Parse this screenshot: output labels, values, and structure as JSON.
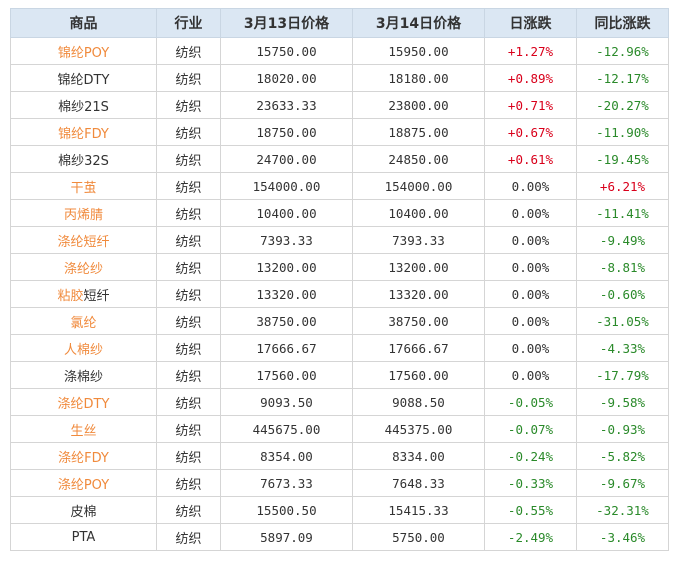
{
  "colors": {
    "orange": "#f08a3c",
    "text": "#333333",
    "up": "#d9001b",
    "down": "#2a8a2a",
    "header_bg": "#dbe7f3",
    "border": "#d5d5d5"
  },
  "headers": [
    "商品",
    "行业",
    "3月13日价格",
    "3月14日价格",
    "日涨跌",
    "同比涨跌"
  ],
  "rows": [
    {
      "name": [
        "锦纶POY"
      ],
      "link": true,
      "industry": "纺织",
      "p13": "15750.00",
      "p14": "15950.00",
      "day": "+1.27%",
      "dayDir": "up",
      "yoy": "-12.96%",
      "yoyDir": "down"
    },
    {
      "name": [
        "锦纶DTY"
      ],
      "link": false,
      "industry": "纺织",
      "p13": "18020.00",
      "p14": "18180.00",
      "day": "+0.89%",
      "dayDir": "up",
      "yoy": "-12.17%",
      "yoyDir": "down"
    },
    {
      "name": [
        "棉纱21S"
      ],
      "link": false,
      "industry": "纺织",
      "p13": "23633.33",
      "p14": "23800.00",
      "day": "+0.71%",
      "dayDir": "up",
      "yoy": "-20.27%",
      "yoyDir": "down"
    },
    {
      "name": [
        "锦纶FDY"
      ],
      "link": true,
      "industry": "纺织",
      "p13": "18750.00",
      "p14": "18875.00",
      "day": "+0.67%",
      "dayDir": "up",
      "yoy": "-11.90%",
      "yoyDir": "down"
    },
    {
      "name": [
        "棉纱32S"
      ],
      "link": false,
      "industry": "纺织",
      "p13": "24700.00",
      "p14": "24850.00",
      "day": "+0.61%",
      "dayDir": "up",
      "yoy": "-19.45%",
      "yoyDir": "down"
    },
    {
      "name": [
        "干茧"
      ],
      "link": true,
      "industry": "纺织",
      "p13": "154000.00",
      "p14": "154000.00",
      "day": "0.00%",
      "dayDir": "flat",
      "yoy": "+6.21%",
      "yoyDir": "up"
    },
    {
      "name": [
        "丙烯腈"
      ],
      "link": true,
      "industry": "纺织",
      "p13": "10400.00",
      "p14": "10400.00",
      "day": "0.00%",
      "dayDir": "flat",
      "yoy": "-11.41%",
      "yoyDir": "down"
    },
    {
      "name": [
        "涤纶短纤"
      ],
      "link": true,
      "industry": "纺织",
      "p13": "7393.33",
      "p14": "7393.33",
      "day": "0.00%",
      "dayDir": "flat",
      "yoy": "-9.49%",
      "yoyDir": "down"
    },
    {
      "name": [
        "涤纶纱"
      ],
      "link": true,
      "industry": "纺织",
      "p13": "13200.00",
      "p14": "13200.00",
      "day": "0.00%",
      "dayDir": "flat",
      "yoy": "-8.81%",
      "yoyDir": "down"
    },
    {
      "name": [
        "粘胶",
        "短纤"
      ],
      "link": true,
      "industry": "纺织",
      "p13": "13320.00",
      "p14": "13320.00",
      "day": "0.00%",
      "dayDir": "flat",
      "yoy": "-0.60%",
      "yoyDir": "down"
    },
    {
      "name": [
        "氯纶"
      ],
      "link": true,
      "industry": "纺织",
      "p13": "38750.00",
      "p14": "38750.00",
      "day": "0.00%",
      "dayDir": "flat",
      "yoy": "-31.05%",
      "yoyDir": "down"
    },
    {
      "name": [
        "人棉纱"
      ],
      "link": true,
      "industry": "纺织",
      "p13": "17666.67",
      "p14": "17666.67",
      "day": "0.00%",
      "dayDir": "flat",
      "yoy": "-4.33%",
      "yoyDir": "down"
    },
    {
      "name": [
        "涤棉纱"
      ],
      "link": false,
      "industry": "纺织",
      "p13": "17560.00",
      "p14": "17560.00",
      "day": "0.00%",
      "dayDir": "flat",
      "yoy": "-17.79%",
      "yoyDir": "down"
    },
    {
      "name": [
        "涤纶DTY"
      ],
      "link": true,
      "industry": "纺织",
      "p13": "9093.50",
      "p14": "9088.50",
      "day": "-0.05%",
      "dayDir": "down",
      "yoy": "-9.58%",
      "yoyDir": "down"
    },
    {
      "name": [
        "生丝"
      ],
      "link": true,
      "industry": "纺织",
      "p13": "445675.00",
      "p14": "445375.00",
      "day": "-0.07%",
      "dayDir": "down",
      "yoy": "-0.93%",
      "yoyDir": "down"
    },
    {
      "name": [
        "涤纶FDY"
      ],
      "link": true,
      "industry": "纺织",
      "p13": "8354.00",
      "p14": "8334.00",
      "day": "-0.24%",
      "dayDir": "down",
      "yoy": "-5.82%",
      "yoyDir": "down"
    },
    {
      "name": [
        "涤纶POY"
      ],
      "link": true,
      "industry": "纺织",
      "p13": "7673.33",
      "p14": "7648.33",
      "day": "-0.33%",
      "dayDir": "down",
      "yoy": "-9.67%",
      "yoyDir": "down"
    },
    {
      "name": [
        "皮棉"
      ],
      "link": false,
      "industry": "纺织",
      "p13": "15500.50",
      "p14": "15415.33",
      "day": "-0.55%",
      "dayDir": "down",
      "yoy": "-32.31%",
      "yoyDir": "down"
    },
    {
      "name": [
        "PTA"
      ],
      "link": false,
      "industry": "纺织",
      "p13": "5897.09",
      "p14": "5750.00",
      "day": "-2.49%",
      "dayDir": "down",
      "yoy": "-3.46%",
      "yoyDir": "down"
    }
  ]
}
